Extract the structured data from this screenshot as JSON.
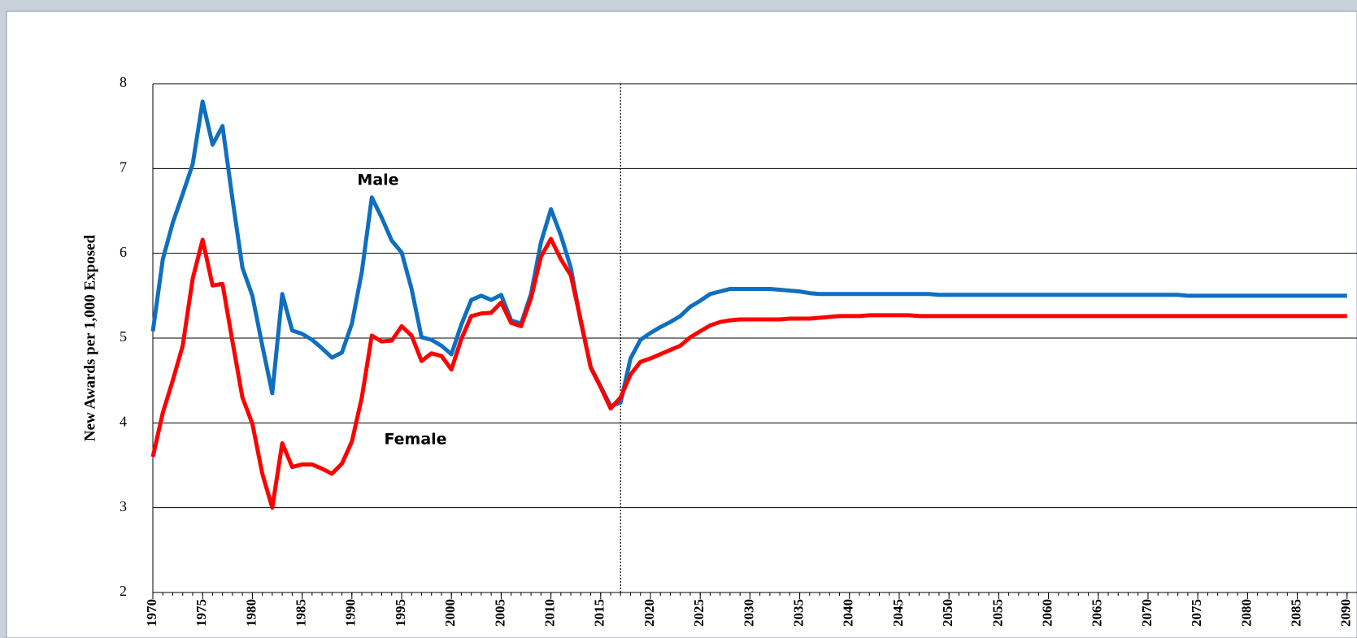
{
  "chart_data": {
    "type": "line",
    "y_label": "New Awards per 1,000 Exposed",
    "x": [
      1970,
      1971,
      1972,
      1973,
      1974,
      1975,
      1976,
      1977,
      1978,
      1979,
      1980,
      1981,
      1982,
      1983,
      1984,
      1985,
      1986,
      1987,
      1988,
      1989,
      1990,
      1991,
      1992,
      1993,
      1994,
      1995,
      1996,
      1997,
      1998,
      1999,
      2000,
      2001,
      2002,
      2003,
      2004,
      2005,
      2006,
      2007,
      2008,
      2009,
      2010,
      2011,
      2012,
      2013,
      2014,
      2015,
      2016,
      2017,
      2018,
      2019,
      2020,
      2021,
      2022,
      2023,
      2024,
      2025,
      2026,
      2027,
      2028,
      2029,
      2030,
      2031,
      2032,
      2033,
      2034,
      2035,
      2036,
      2037,
      2038,
      2039,
      2040,
      2041,
      2042,
      2043,
      2044,
      2045,
      2046,
      2047,
      2048,
      2049,
      2050,
      2051,
      2052,
      2053,
      2054,
      2055,
      2056,
      2057,
      2058,
      2059,
      2060,
      2061,
      2062,
      2063,
      2064,
      2065,
      2066,
      2067,
      2068,
      2069,
      2070,
      2071,
      2072,
      2073,
      2074,
      2075,
      2076,
      2077,
      2078,
      2079,
      2080,
      2081,
      2082,
      2083,
      2084,
      2085,
      2086,
      2087,
      2088,
      2089,
      2090
    ],
    "series": [
      {
        "name": "Male",
        "color": "#0f6fbf",
        "values": [
          5.08,
          5.93,
          6.36,
          6.7,
          7.05,
          7.79,
          7.28,
          7.5,
          6.64,
          5.83,
          5.5,
          4.91,
          4.35,
          5.52,
          5.09,
          5.05,
          4.98,
          4.88,
          4.77,
          4.83,
          5.17,
          5.78,
          6.66,
          6.42,
          6.15,
          6.01,
          5.58,
          5.01,
          4.98,
          4.91,
          4.81,
          5.16,
          5.45,
          5.5,
          5.45,
          5.51,
          5.21,
          5.17,
          5.52,
          6.13,
          6.52,
          6.21,
          5.83,
          5.19,
          4.66,
          4.43,
          4.2,
          4.24,
          4.76,
          4.98,
          5.06,
          5.13,
          5.19,
          5.26,
          5.37,
          5.44,
          5.52,
          5.55,
          5.58,
          5.58,
          5.58,
          5.58,
          5.58,
          5.57,
          5.56,
          5.55,
          5.53,
          5.52,
          5.52,
          5.52,
          5.52,
          5.52,
          5.52,
          5.52,
          5.52,
          5.52,
          5.52,
          5.52,
          5.52,
          5.51,
          5.51,
          5.51,
          5.51,
          5.51,
          5.51,
          5.51,
          5.51,
          5.51,
          5.51,
          5.51,
          5.51,
          5.51,
          5.51,
          5.51,
          5.51,
          5.51,
          5.51,
          5.51,
          5.51,
          5.51,
          5.51,
          5.51,
          5.51,
          5.51,
          5.5,
          5.5,
          5.5,
          5.5,
          5.5,
          5.5,
          5.5,
          5.5,
          5.5,
          5.5,
          5.5,
          5.5,
          5.5,
          5.5,
          5.5,
          5.5,
          5.5
        ]
      },
      {
        "name": "Female",
        "color": "#ff0000",
        "values": [
          3.6,
          4.12,
          4.5,
          4.91,
          5.7,
          6.16,
          5.62,
          5.64,
          4.96,
          4.3,
          3.99,
          3.4,
          3.0,
          3.76,
          3.48,
          3.51,
          3.51,
          3.46,
          3.4,
          3.52,
          3.78,
          4.3,
          5.03,
          4.96,
          4.97,
          5.14,
          5.03,
          4.73,
          4.82,
          4.79,
          4.63,
          4.99,
          5.26,
          5.29,
          5.3,
          5.42,
          5.18,
          5.14,
          5.47,
          5.96,
          6.17,
          5.93,
          5.74,
          5.21,
          4.65,
          4.42,
          4.17,
          4.3,
          4.57,
          4.72,
          4.76,
          4.81,
          4.86,
          4.91,
          5.01,
          5.08,
          5.15,
          5.19,
          5.21,
          5.22,
          5.22,
          5.22,
          5.22,
          5.22,
          5.23,
          5.23,
          5.23,
          5.24,
          5.25,
          5.26,
          5.26,
          5.26,
          5.27,
          5.27,
          5.27,
          5.27,
          5.27,
          5.26,
          5.26,
          5.26,
          5.26,
          5.26,
          5.26,
          5.26,
          5.26,
          5.26,
          5.26,
          5.26,
          5.26,
          5.26,
          5.26,
          5.26,
          5.26,
          5.26,
          5.26,
          5.26,
          5.26,
          5.26,
          5.26,
          5.26,
          5.26,
          5.26,
          5.26,
          5.26,
          5.26,
          5.26,
          5.26,
          5.26,
          5.26,
          5.26,
          5.26,
          5.26,
          5.26,
          5.26,
          5.26,
          5.26,
          5.26,
          5.26,
          5.26,
          5.26,
          5.26
        ]
      }
    ],
    "vline": 2017,
    "xlim": [
      1970,
      2091
    ],
    "xticks": [
      1970,
      1975,
      1980,
      1985,
      1990,
      1995,
      2000,
      2005,
      2010,
      2015,
      2020,
      2025,
      2030,
      2035,
      2040,
      2045,
      2050,
      2055,
      2060,
      2065,
      2070,
      2075,
      2080,
      2085,
      2090
    ],
    "ylim": [
      2,
      8
    ],
    "yticks": [
      2,
      3,
      4,
      5,
      6,
      7,
      8
    ],
    "grid": true
  }
}
